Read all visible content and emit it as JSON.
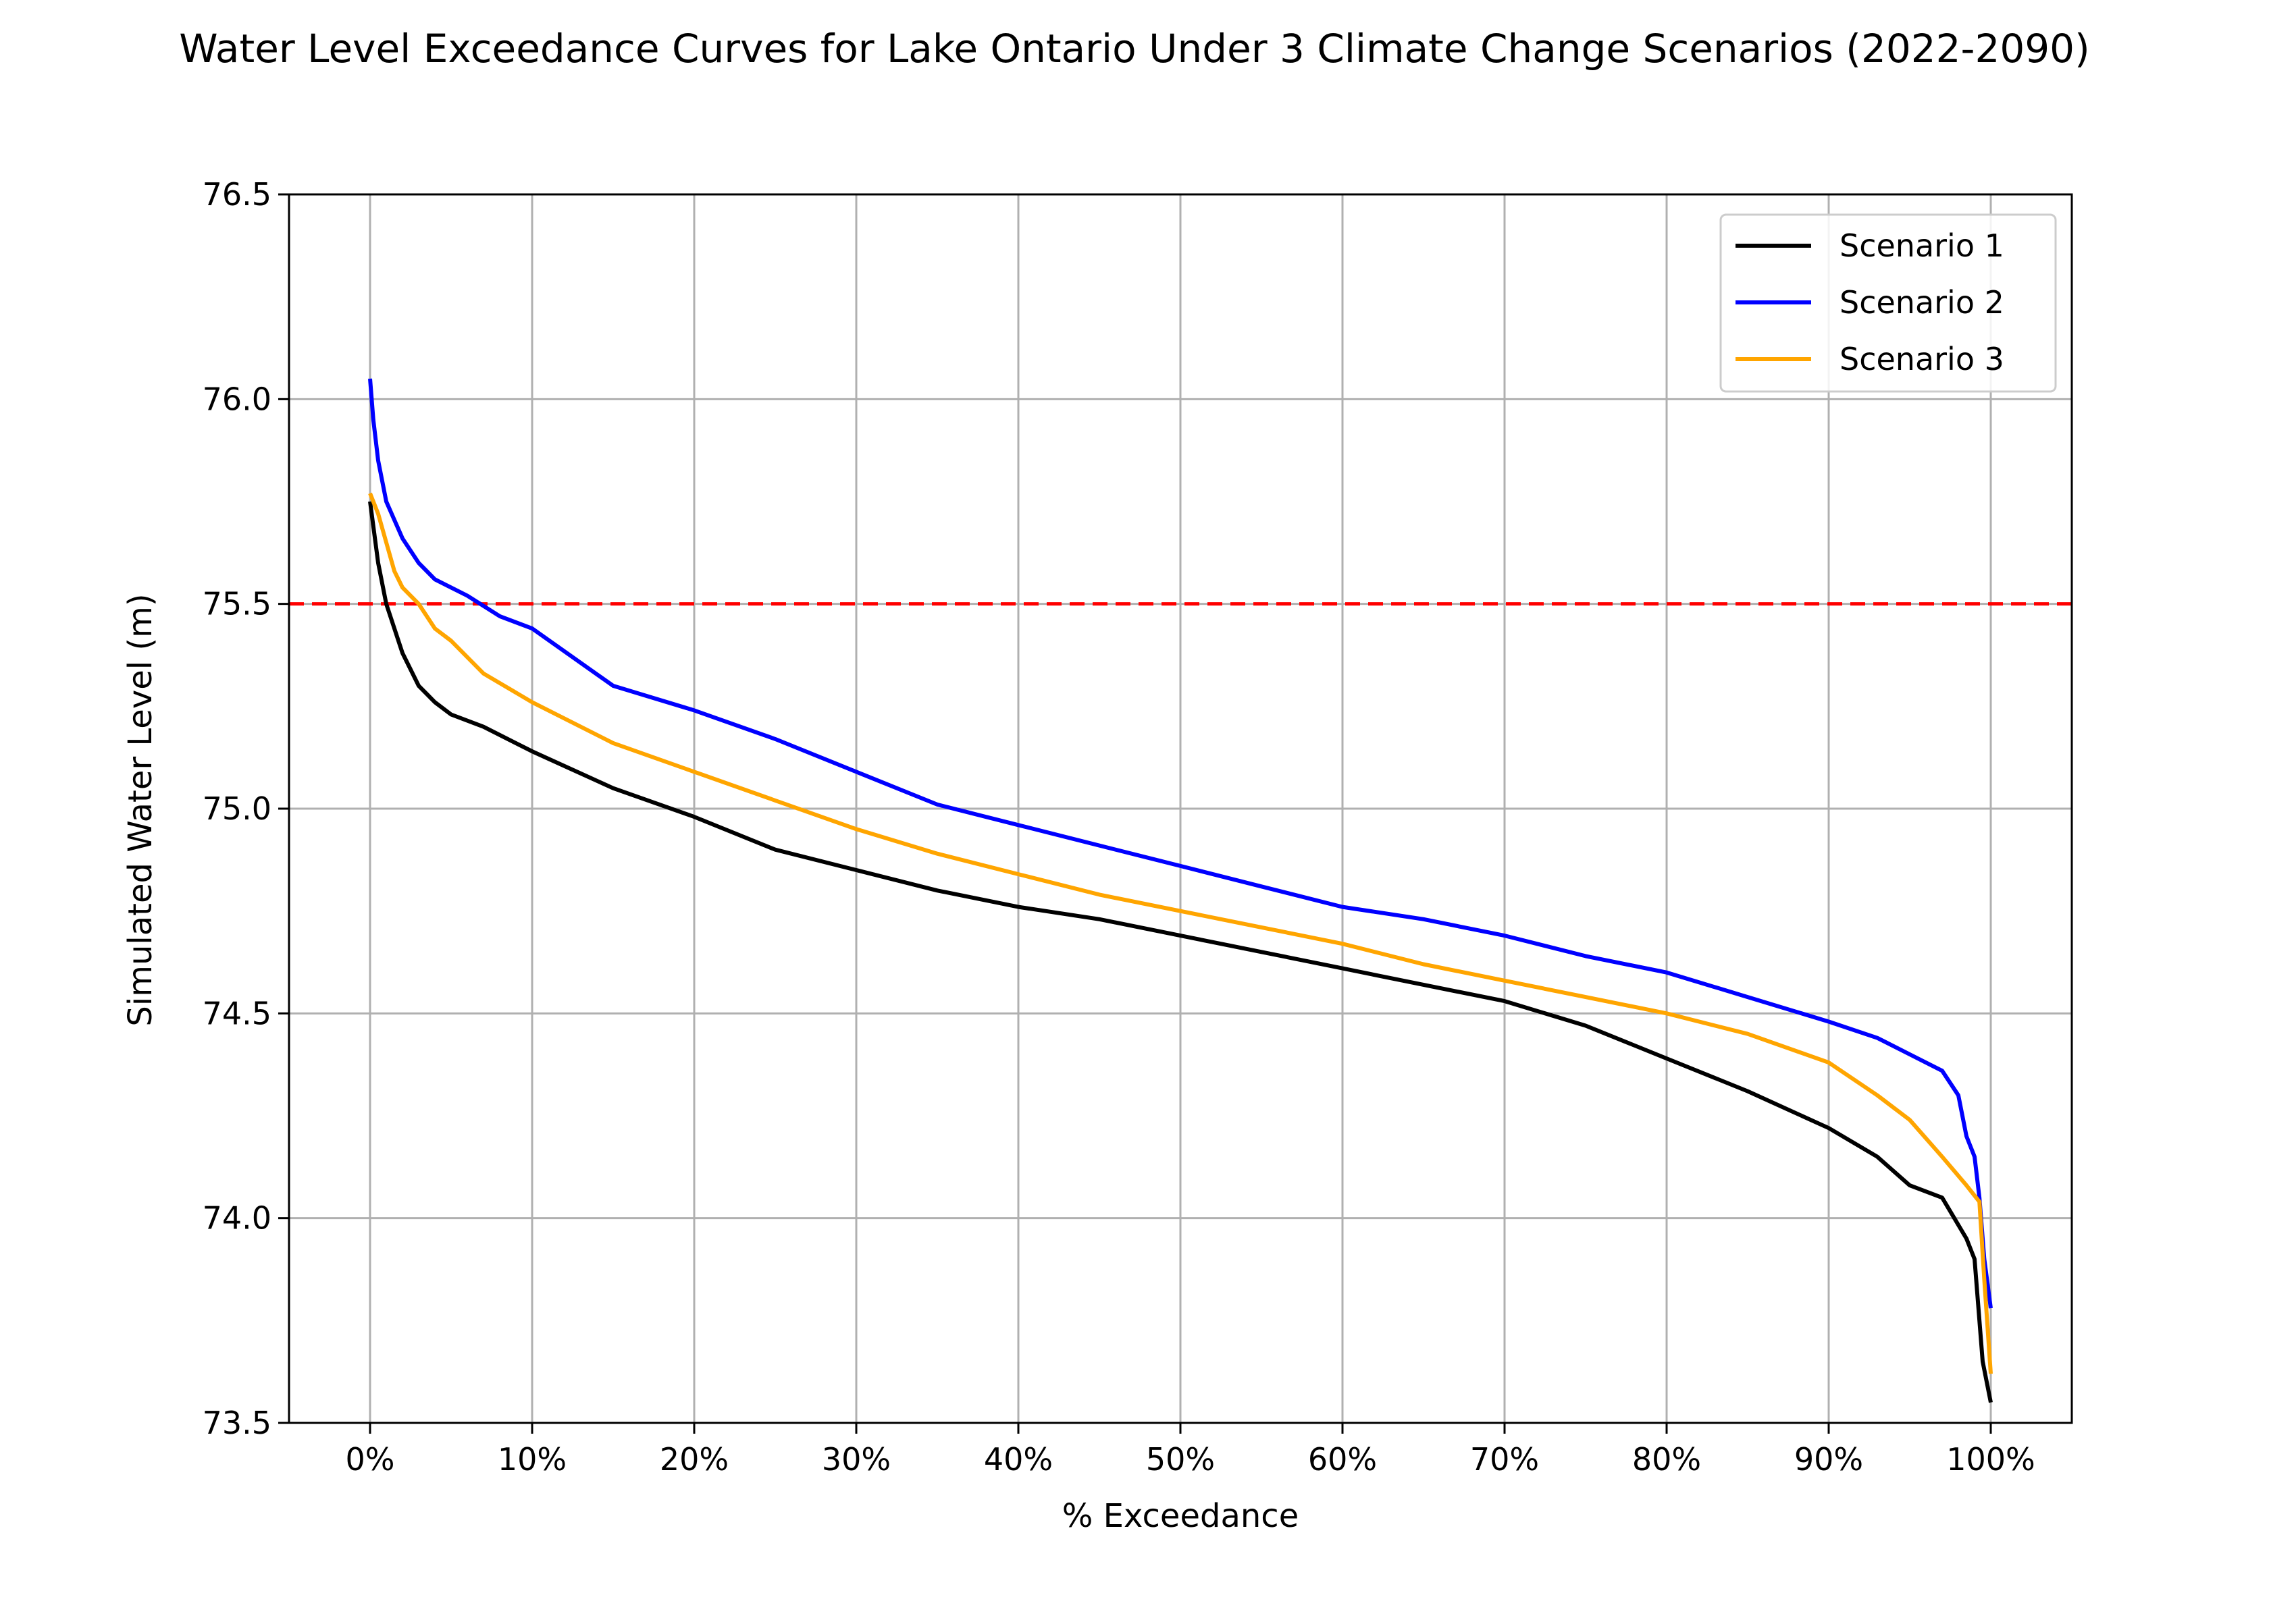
{
  "chart_data": {
    "type": "line",
    "title": "Water Level Exceedance Curves for Lake Ontario Under 3 Climate Change Scenarios (2022-2090)",
    "xlabel": "% Exceedance",
    "ylabel": "Simulated Water Level (m)",
    "xlim": [
      -5,
      105
    ],
    "ylim": [
      73.5,
      76.5
    ],
    "x_ticks": [
      0,
      10,
      20,
      30,
      40,
      50,
      60,
      70,
      80,
      90,
      100
    ],
    "x_tick_labels": [
      "0%",
      "10%",
      "20%",
      "30%",
      "40%",
      "50%",
      "60%",
      "70%",
      "80%",
      "90%",
      "100%"
    ],
    "y_ticks": [
      73.5,
      74.0,
      74.5,
      75.0,
      75.5,
      76.0,
      76.5
    ],
    "y_tick_labels": [
      "73.5",
      "74.0",
      "74.5",
      "75.0",
      "75.5",
      "76.0",
      "76.5"
    ],
    "grid": true,
    "legend_position": "top-right",
    "reference_line": {
      "y": 75.5,
      "color": "#ff0000",
      "style": "dashed"
    },
    "series": [
      {
        "name": "Scenario 1",
        "color": "#000000",
        "points": [
          [
            0,
            75.75
          ],
          [
            0.5,
            75.6
          ],
          [
            1,
            75.5
          ],
          [
            2,
            75.38
          ],
          [
            3,
            75.3
          ],
          [
            4,
            75.26
          ],
          [
            5,
            75.23
          ],
          [
            7,
            75.2
          ],
          [
            10,
            75.14
          ],
          [
            15,
            75.05
          ],
          [
            20,
            74.98
          ],
          [
            25,
            74.9
          ],
          [
            30,
            74.85
          ],
          [
            35,
            74.8
          ],
          [
            40,
            74.76
          ],
          [
            45,
            74.73
          ],
          [
            50,
            74.69
          ],
          [
            55,
            74.65
          ],
          [
            60,
            74.61
          ],
          [
            65,
            74.57
          ],
          [
            70,
            74.53
          ],
          [
            75,
            74.47
          ],
          [
            80,
            74.39
          ],
          [
            85,
            74.31
          ],
          [
            90,
            74.22
          ],
          [
            93,
            74.15
          ],
          [
            95,
            74.08
          ],
          [
            97,
            74.05
          ],
          [
            98.5,
            73.95
          ],
          [
            99,
            73.9
          ],
          [
            99.5,
            73.65
          ],
          [
            100,
            73.55
          ]
        ]
      },
      {
        "name": "Scenario 2",
        "color": "#0000ff",
        "points": [
          [
            0,
            76.05
          ],
          [
            0.2,
            75.95
          ],
          [
            0.5,
            75.85
          ],
          [
            1,
            75.75
          ],
          [
            2,
            75.66
          ],
          [
            3,
            75.6
          ],
          [
            4,
            75.56
          ],
          [
            5,
            75.54
          ],
          [
            6,
            75.52
          ],
          [
            8,
            75.47
          ],
          [
            10,
            75.44
          ],
          [
            15,
            75.3
          ],
          [
            20,
            75.24
          ],
          [
            25,
            75.17
          ],
          [
            30,
            75.09
          ],
          [
            35,
            75.01
          ],
          [
            40,
            74.96
          ],
          [
            45,
            74.91
          ],
          [
            50,
            74.86
          ],
          [
            55,
            74.81
          ],
          [
            60,
            74.76
          ],
          [
            65,
            74.73
          ],
          [
            70,
            74.69
          ],
          [
            75,
            74.64
          ],
          [
            80,
            74.6
          ],
          [
            85,
            74.54
          ],
          [
            90,
            74.48
          ],
          [
            93,
            74.44
          ],
          [
            95,
            74.4
          ],
          [
            97,
            74.36
          ],
          [
            98,
            74.3
          ],
          [
            98.5,
            74.2
          ],
          [
            99,
            74.15
          ],
          [
            99.3,
            74.05
          ],
          [
            99.6,
            73.9
          ],
          [
            100,
            73.78
          ]
        ]
      },
      {
        "name": "Scenario 3",
        "color": "#ffa500",
        "points": [
          [
            0,
            75.77
          ],
          [
            0.5,
            75.72
          ],
          [
            1,
            75.65
          ],
          [
            1.5,
            75.58
          ],
          [
            2,
            75.54
          ],
          [
            3,
            75.5
          ],
          [
            4,
            75.44
          ],
          [
            5,
            75.41
          ],
          [
            7,
            75.33
          ],
          [
            10,
            75.26
          ],
          [
            15,
            75.16
          ],
          [
            20,
            75.09
          ],
          [
            25,
            75.02
          ],
          [
            30,
            74.95
          ],
          [
            35,
            74.89
          ],
          [
            40,
            74.84
          ],
          [
            45,
            74.79
          ],
          [
            50,
            74.75
          ],
          [
            55,
            74.71
          ],
          [
            60,
            74.67
          ],
          [
            65,
            74.62
          ],
          [
            70,
            74.58
          ],
          [
            75,
            74.54
          ],
          [
            80,
            74.5
          ],
          [
            85,
            74.45
          ],
          [
            90,
            74.38
          ],
          [
            93,
            74.3
          ],
          [
            95,
            74.24
          ],
          [
            97,
            74.15
          ],
          [
            98.5,
            74.08
          ],
          [
            99.3,
            74.04
          ],
          [
            99.6,
            73.85
          ],
          [
            100,
            73.62
          ]
        ]
      }
    ]
  }
}
